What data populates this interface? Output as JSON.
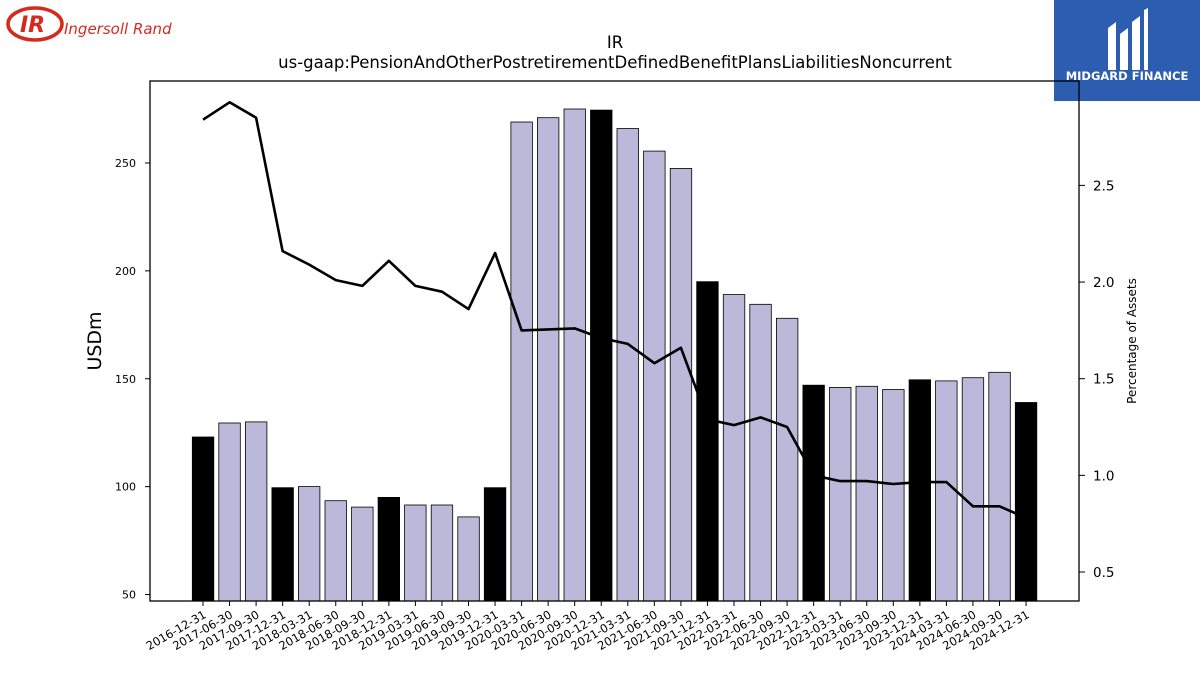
{
  "logos": {
    "left_brand": "Ingersoll Rand",
    "left_mark": "IR",
    "right_brand": "MIDGARD FINANCE"
  },
  "colors": {
    "bar_default": "#bcb8da",
    "bar_highlight": "#000000",
    "line": "#000000",
    "ir_red": "#d52b1e",
    "midgard_blue": "#2d5db0"
  },
  "chart_data": {
    "type": "bar",
    "title": "IR",
    "subtitle": "us-gaap:PensionAndOtherPostretirementDefinedBenefitPlansLiabilitiesNoncurrent",
    "ylabel": "USDm",
    "y2label": "Percentage of Assets",
    "ylim": [
      47,
      288
    ],
    "y2lim": [
      0.35,
      3.04
    ],
    "yticks": [
      50,
      100,
      150,
      200,
      250
    ],
    "y2ticks": [
      0.5,
      1.0,
      1.5,
      2.0,
      2.5
    ],
    "categories": [
      "2016-12-31",
      "2017-06-30",
      "2017-09-30",
      "2017-12-31",
      "2018-03-31",
      "2018-06-30",
      "2018-09-30",
      "2018-12-31",
      "2019-03-31",
      "2019-06-30",
      "2019-09-30",
      "2019-12-31",
      "2020-03-31",
      "2020-06-30",
      "2020-09-30",
      "2020-12-31",
      "2021-03-31",
      "2021-06-30",
      "2021-09-30",
      "2021-12-31",
      "2022-03-31",
      "2022-06-30",
      "2022-09-30",
      "2022-12-31",
      "2023-03-31",
      "2023-06-30",
      "2023-09-30",
      "2023-12-31",
      "2024-03-31",
      "2024-06-30",
      "2024-09-30",
      "2024-12-31"
    ],
    "series": [
      {
        "kind": "bar",
        "axis": "left",
        "values": [
          123,
          129.5,
          130,
          99.5,
          100,
          93.5,
          90.5,
          95,
          91.5,
          91.5,
          86,
          99.5,
          269,
          271,
          275,
          274.5,
          266,
          255.5,
          247.5,
          195,
          189,
          184.5,
          178,
          147,
          146,
          146.5,
          145,
          149.5,
          149,
          150.5,
          153,
          139
        ],
        "highlight": [
          true,
          false,
          false,
          true,
          false,
          false,
          false,
          true,
          false,
          false,
          false,
          true,
          false,
          false,
          false,
          true,
          false,
          false,
          false,
          true,
          false,
          false,
          false,
          true,
          false,
          false,
          false,
          true,
          false,
          false,
          false,
          true
        ]
      },
      {
        "kind": "line",
        "axis": "right",
        "values": [
          2.84,
          2.93,
          2.85,
          2.16,
          2.09,
          2.01,
          1.98,
          2.11,
          1.98,
          1.95,
          1.86,
          2.15,
          1.75,
          1.755,
          1.76,
          1.71,
          1.68,
          1.58,
          1.66,
          1.29,
          1.26,
          1.3,
          1.25,
          1.0,
          0.97,
          0.97,
          0.955,
          0.965,
          0.965,
          0.84,
          0.84,
          0.78
        ]
      }
    ],
    "grid": false
  }
}
